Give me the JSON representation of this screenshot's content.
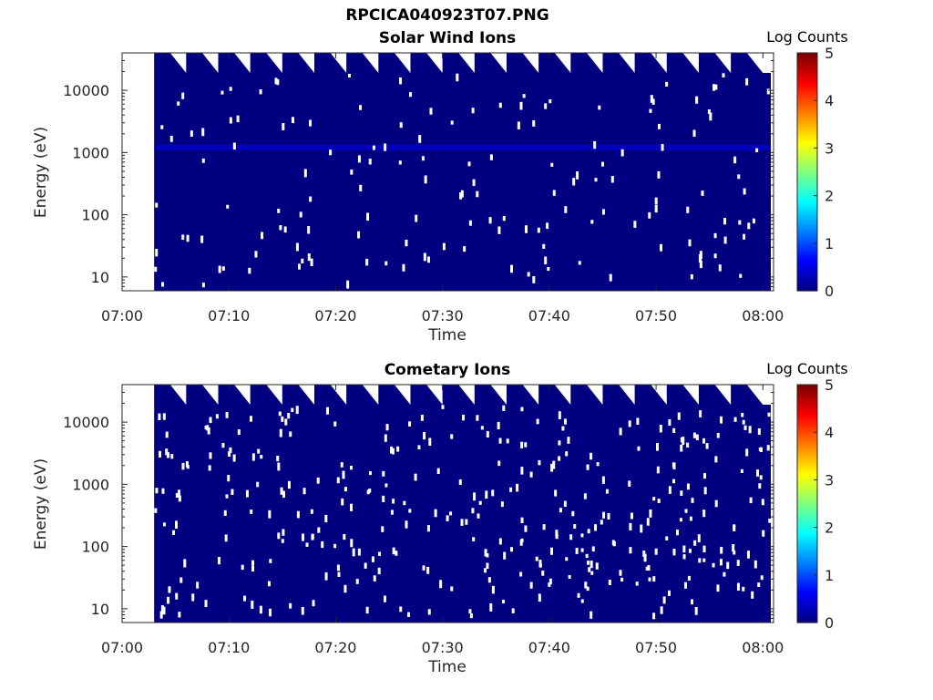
{
  "figure": {
    "title": "RPCICA040923T07.PNG"
  },
  "chart_data": [
    {
      "type": "heatmap",
      "title": "Solar Wind Ions",
      "xlabel": "Time",
      "ylabel": "Energy (eV)",
      "x_range": [
        "07:00",
        "08:01"
      ],
      "x_ticks": [
        "07:00",
        "07:10",
        "07:20",
        "07:30",
        "07:40",
        "07:50",
        "08:00"
      ],
      "y_scale": "log",
      "y_range_eV": [
        6,
        40000
      ],
      "y_ticks": [
        "10",
        "100",
        "1000",
        "10000"
      ],
      "data_start": "07:03",
      "background_log_counts": 0,
      "enhanced_band_eV": 1200,
      "enhanced_band_log_counts": 0.5,
      "colorbar": {
        "label": "Log Counts",
        "range": [
          0,
          5
        ],
        "ticks": [
          "0",
          "1",
          "2",
          "3",
          "4",
          "5"
        ],
        "colormap": "jet"
      }
    },
    {
      "type": "heatmap",
      "title": "Cometary Ions",
      "xlabel": "Time",
      "ylabel": "Energy (eV)",
      "x_range": [
        "07:00",
        "08:01"
      ],
      "x_ticks": [
        "07:00",
        "07:10",
        "07:20",
        "07:30",
        "07:40",
        "07:50",
        "08:00"
      ],
      "y_scale": "log",
      "y_range_eV": [
        6,
        40000
      ],
      "y_ticks": [
        "10",
        "100",
        "1000",
        "10000"
      ],
      "data_start": "07:03",
      "background_log_counts": 0,
      "colorbar": {
        "label": "Log Counts",
        "range": [
          0,
          5
        ],
        "ticks": [
          "0",
          "1",
          "2",
          "3",
          "4",
          "5"
        ],
        "colormap": "jet"
      }
    }
  ]
}
